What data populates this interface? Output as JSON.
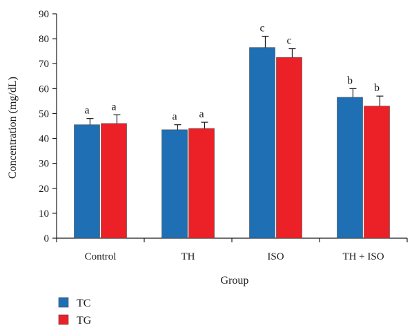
{
  "chart_data": {
    "type": "bar",
    "xlabel": "Group",
    "ylabel": "Concentration (mg/dL)",
    "ylim": [
      0,
      90
    ],
    "yticks": [
      0,
      10,
      20,
      30,
      40,
      50,
      60,
      70,
      80,
      90
    ],
    "categories": [
      "Control",
      "TH",
      "ISO",
      "TH + ISO"
    ],
    "series": [
      {
        "name": "TC",
        "color": "#1f6fb4",
        "values": [
          45.5,
          43.5,
          76.5,
          56.5
        ],
        "errors": [
          2.5,
          2.0,
          4.5,
          3.5
        ],
        "labels": [
          "a",
          "a",
          "c",
          "b"
        ]
      },
      {
        "name": "TG",
        "color": "#ec2127",
        "values": [
          46.0,
          44.0,
          72.5,
          53.0
        ],
        "errors": [
          3.5,
          2.5,
          3.5,
          4.0
        ],
        "labels": [
          "a",
          "a",
          "c",
          "b"
        ]
      }
    ],
    "grid": false,
    "legend": "bottom-left"
  }
}
